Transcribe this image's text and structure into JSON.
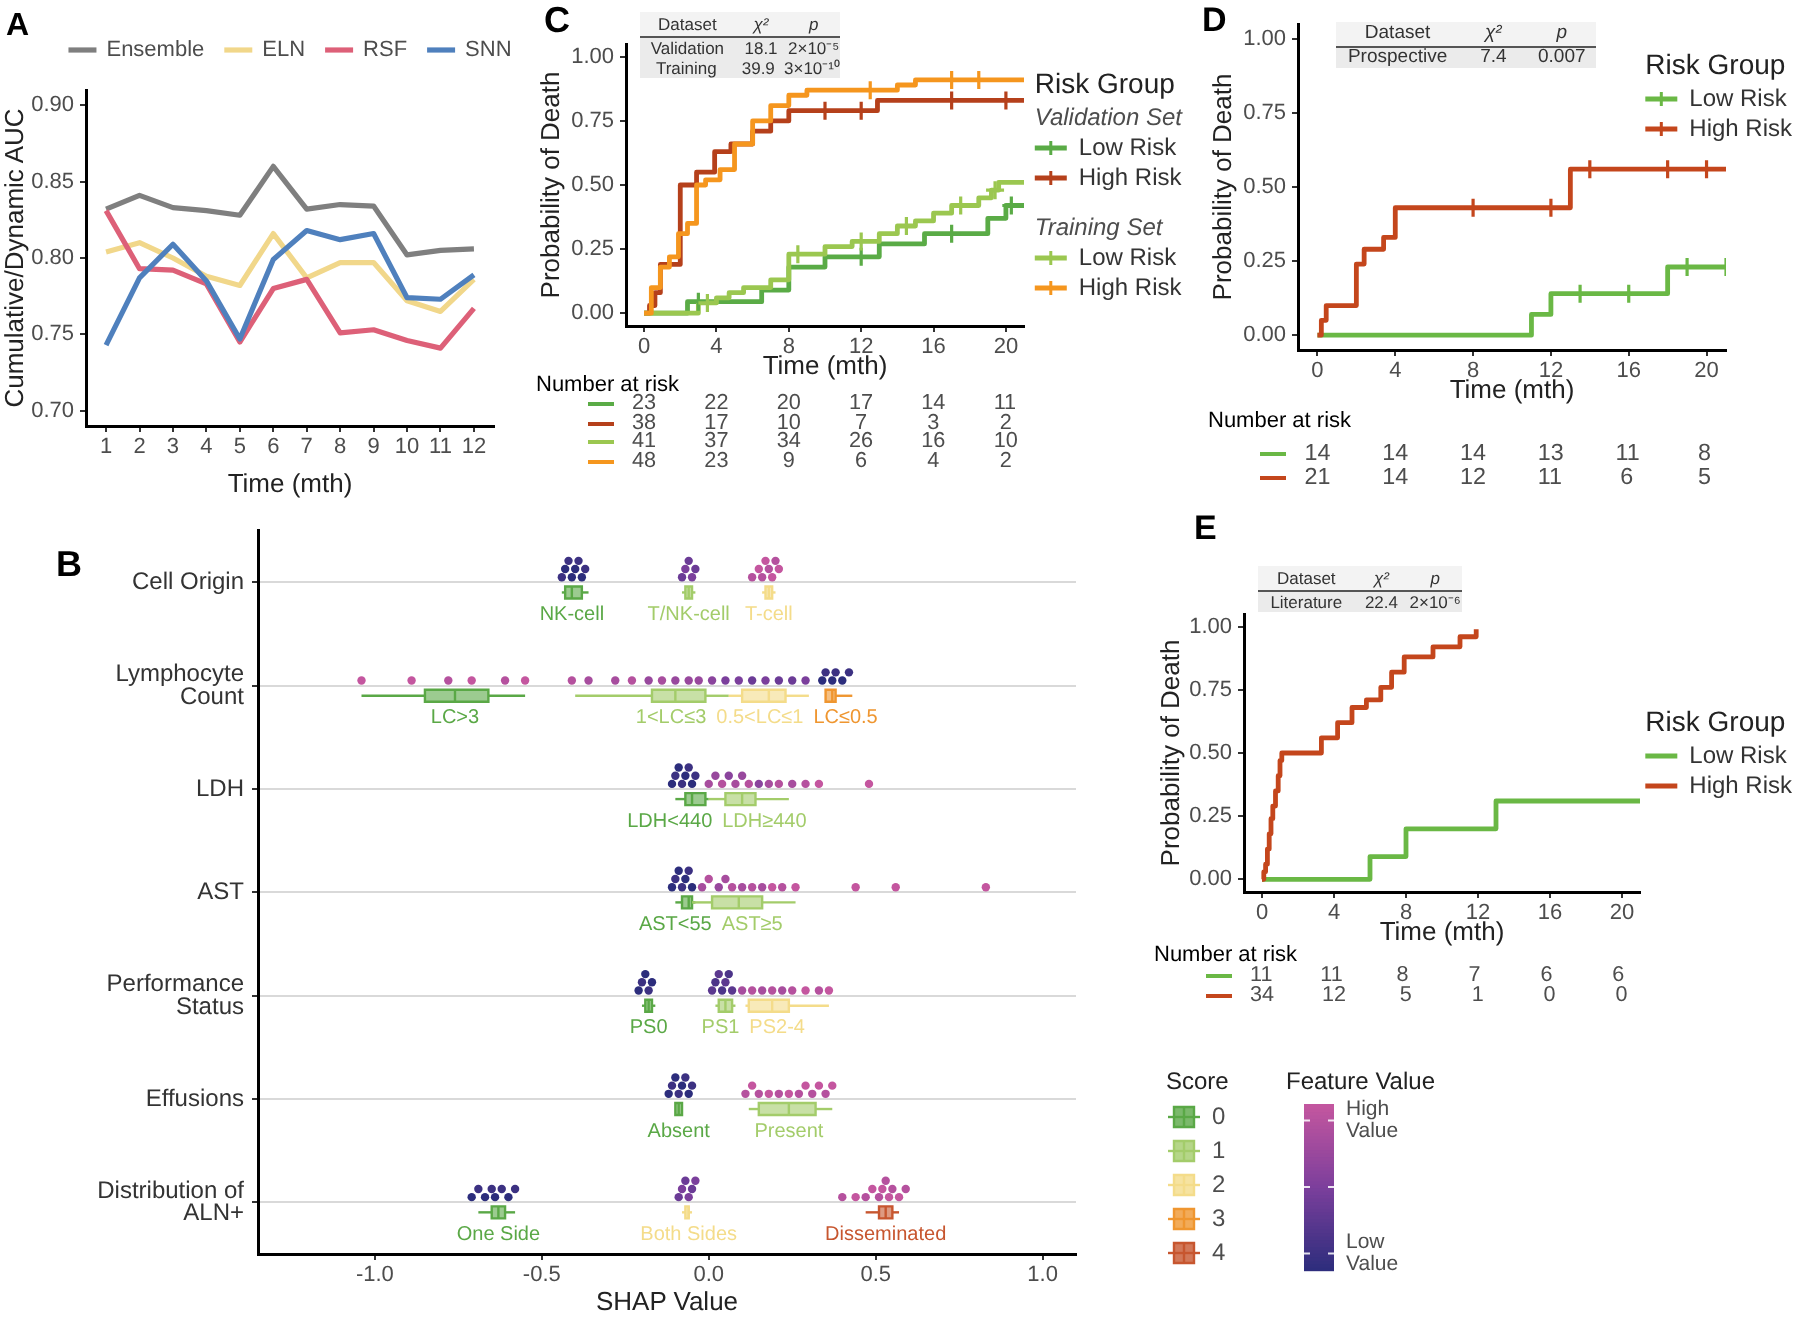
{
  "chart_data": [
    {
      "type": "line",
      "title": "A",
      "xlabel": "Time (mth)",
      "ylabel": "Cumulative/Dynamic AUC",
      "x": [
        1,
        2,
        3,
        4,
        5,
        6,
        7,
        8,
        9,
        10,
        11,
        12
      ],
      "xlim": [
        0.4,
        12.6
      ],
      "xticks": [
        1,
        2,
        3,
        4,
        5,
        6,
        7,
        8,
        9,
        10,
        11,
        12
      ],
      "ylim": [
        0.69,
        0.91
      ],
      "yticks": [
        {
          "value": 0.7,
          "label": "0.70"
        },
        0.75,
        {
          "value": 0.8,
          "label": "0.80"
        },
        0.85,
        {
          "value": 0.9,
          "label": "0.90"
        }
      ],
      "legend": "top",
      "series": [
        {
          "name": "Ensemble",
          "color": "#7f7f7f",
          "values": [
            0.832,
            0.841,
            0.833,
            0.831,
            0.828,
            0.86,
            0.832,
            0.835,
            0.834,
            0.802,
            0.805,
            0.806
          ]
        },
        {
          "name": "ELN",
          "color": "#f1d78a",
          "values": [
            0.804,
            0.81,
            0.8,
            0.788,
            0.782,
            0.816,
            0.787,
            0.797,
            0.797,
            0.772,
            0.765,
            0.786
          ]
        },
        {
          "name": "RSF",
          "color": "#dd6078",
          "values": [
            0.831,
            0.793,
            0.792,
            0.783,
            0.745,
            0.78,
            0.786,
            0.751,
            0.753,
            0.746,
            0.741,
            0.767
          ]
        },
        {
          "name": "SNN",
          "color": "#4f80bd",
          "values": [
            0.743,
            0.787,
            0.809,
            0.785,
            0.747,
            0.799,
            0.818,
            0.812,
            0.816,
            0.774,
            0.773,
            0.789
          ]
        }
      ]
    },
    {
      "type": "step",
      "title": "C",
      "xlabel": "Time (mth)",
      "ylabel": "Probability of Death",
      "xlim": [
        -1,
        21
      ],
      "xticks": [
        0,
        4,
        8,
        12,
        16,
        20
      ],
      "ylim": [
        -0.05,
        1.05
      ],
      "yticks": [
        {
          "value": 0,
          "label": "0.00"
        },
        0.25,
        {
          "value": 0.5,
          "label": "0.50"
        },
        0.75,
        {
          "value": 1,
          "label": "1.00"
        }
      ],
      "legend": "right",
      "legend_title": "Risk Group",
      "annotations": [
        "Validation Set",
        "Training Set"
      ],
      "series": [
        {
          "name": "Low Risk",
          "color": "#5aab46",
          "x": [
            0,
            2.4,
            6.5,
            8,
            10,
            13,
            15.5,
            19,
            20,
            21
          ],
          "values": [
            0,
            0.045,
            0.09,
            0.18,
            0.22,
            0.27,
            0.31,
            0.37,
            0.42,
            0.42
          ]
        },
        {
          "name": "High Risk",
          "color": "#b5401b",
          "x": [
            0,
            0.3,
            0.6,
            0.9,
            2,
            2.9,
            3.9,
            4.8,
            6,
            7,
            8,
            12.9,
            21
          ],
          "values": [
            0,
            0.03,
            0.08,
            0.19,
            0.5,
            0.55,
            0.63,
            0.66,
            0.71,
            0.75,
            0.79,
            0.83,
            0.83
          ]
        },
        {
          "name": "Low Risk",
          "color": "#9bc750",
          "x": [
            0,
            3,
            4,
            4.7,
            5.5,
            7,
            8,
            10,
            11.5,
            13,
            14,
            15,
            16,
            17,
            18.5,
            19.2,
            19.6,
            21
          ],
          "values": [
            0,
            0.04,
            0.06,
            0.08,
            0.1,
            0.13,
            0.23,
            0.26,
            0.28,
            0.31,
            0.34,
            0.36,
            0.39,
            0.42,
            0.45,
            0.48,
            0.51,
            0.51
          ]
        },
        {
          "name": "High Risk",
          "color": "#f5961e",
          "x": [
            0,
            0.4,
            0.9,
            1.4,
            1.9,
            2.4,
            2.9,
            3.4,
            4.2,
            5,
            6,
            7,
            8,
            9,
            14,
            15,
            21
          ],
          "values": [
            0,
            0.1,
            0.18,
            0.22,
            0.31,
            0.35,
            0.5,
            0.52,
            0.56,
            0.66,
            0.75,
            0.81,
            0.85,
            0.87,
            0.89,
            0.91,
            0.91
          ]
        },
        {
          "type": "scatter",
          "marker": "cross",
          "color": "#5aab46",
          "x": [
            3,
            12,
            17,
            20.3
          ],
          "values": [
            0.045,
            0.22,
            0.31,
            0.42
          ]
        },
        {
          "type": "scatter",
          "marker": "cross",
          "color": "#b5401b",
          "x": [
            10,
            12,
            17,
            20
          ],
          "values": [
            0.79,
            0.79,
            0.83,
            0.83
          ]
        },
        {
          "type": "scatter",
          "marker": "cross",
          "color": "#9bc750",
          "x": [
            3.5,
            8.5,
            12,
            14.5,
            17.5,
            19.4
          ],
          "values": [
            0.04,
            0.23,
            0.28,
            0.34,
            0.42,
            0.48
          ]
        },
        {
          "type": "scatter",
          "marker": "cross",
          "color": "#f5961e",
          "x": [
            12.5,
            17,
            18.5
          ],
          "values": [
            0.87,
            0.91,
            0.91
          ]
        }
      ]
    },
    {
      "type": "other",
      "annotations": [
        "Dataset",
        "χ²",
        "p",
        "Validation",
        "18.1",
        "2×10⁻⁵",
        "Training",
        "39.9",
        "3×10⁻¹⁰"
      ]
    },
    {
      "type": "other",
      "title": "Number at risk",
      "annotations": [
        "23 22 20 17 14 11",
        "38 17 10 7 3 2",
        "41 37 34 26 16 10",
        "48 23 9 6 4 2"
      ]
    },
    {
      "type": "step",
      "title": "D",
      "xlabel": "Time (mth)",
      "ylabel": "Probability of Death",
      "xlim": [
        -1,
        21
      ],
      "xticks": [
        0,
        4,
        8,
        12,
        16,
        20
      ],
      "ylim": [
        -0.05,
        1.05
      ],
      "yticks": [
        {
          "value": 0,
          "label": "0.00"
        },
        0.25,
        {
          "value": 0.5,
          "label": "0.50"
        },
        0.75,
        {
          "value": 1,
          "label": "1.00"
        }
      ],
      "legend": "top right",
      "legend_title": "Risk Group",
      "series": [
        {
          "name": "Low Risk",
          "color": "#6ab845",
          "x": [
            0,
            11,
            12,
            18,
            21
          ],
          "values": [
            0,
            0.07,
            0.14,
            0.23,
            0.23
          ]
        },
        {
          "name": "High Risk",
          "color": "#c4461c",
          "x": [
            0,
            0.2,
            0.45,
            2,
            2.4,
            3.4,
            4,
            13,
            21
          ],
          "values": [
            0,
            0.05,
            0.1,
            0.24,
            0.29,
            0.33,
            0.43,
            0.56,
            0.56
          ]
        },
        {
          "type": "scatter",
          "marker": "cross",
          "color": "#6ab845",
          "x": [
            13.5,
            16,
            19,
            21
          ],
          "values": [
            0.14,
            0.14,
            0.23,
            0.23
          ]
        },
        {
          "type": "scatter",
          "marker": "cross",
          "color": "#c4461c",
          "x": [
            8,
            12,
            14,
            18,
            20
          ],
          "values": [
            0.43,
            0.43,
            0.56,
            0.56,
            0.56
          ]
        }
      ]
    },
    {
      "type": "other",
      "annotations": [
        "Dataset",
        "χ²",
        "p",
        "Prospective",
        "7.4",
        "0.007"
      ]
    },
    {
      "type": "other",
      "title": "Number at risk",
      "annotations": [
        "14 14 14 13 11 8",
        "21 14 12 11 6 5"
      ]
    },
    {
      "type": "box",
      "title": "B",
      "orientation": "horizontal",
      "categories": [
        "Cell Origin",
        "Lymphocyte Count",
        "LDH",
        "AST",
        "Performance Status",
        "Effusions",
        "Distribution of ALN+"
      ],
      "xlabel": "SHAP Value",
      "xlim": [
        -1.35,
        1.1
      ],
      "xticks": [
        {
          "value": -1,
          "label": "-1.0"
        },
        -0.5,
        {
          "value": 0,
          "label": "0.0"
        },
        0.5,
        {
          "value": 1,
          "label": "1.0"
        }
      ],
      "grid": "y",
      "legend": "bottom right",
      "legend_title": "Score",
      "clabel": "Feature Value",
      "clim": [
        0,
        1
      ],
      "cticks": [
        {
          "value": 0.1,
          "label": "Low Value"
        },
        {
          "value": 0.5,
          "label": null
        },
        {
          "value": 0.9,
          "label": "High Value"
        }
      ],
      "annotations": [
        {
          "text": "NK-cell",
          "x": -0.41,
          "y": "Cell Origin"
        },
        {
          "text": "T/NK-cell",
          "x": -0.06,
          "y": "Cell Origin"
        },
        {
          "text": "T-cell",
          "x": 0.18,
          "y": "Cell Origin"
        },
        {
          "text": "LC>3",
          "x": -0.76,
          "y": "Lymphocyte Count"
        },
        {
          "text": "1<LC≤3",
          "x": -0.1,
          "y": "Lymphocyte Count"
        },
        {
          "text": "0.5<LC≤1",
          "x": 0.18,
          "y": "Lymphocyte Count"
        },
        {
          "text": "LC≤0.5",
          "x": 0.37,
          "y": "Lymphocyte Count"
        },
        {
          "text": "LDH<440",
          "x": -0.05,
          "y": "LDH"
        },
        {
          "text": "LDH≥440",
          "x": 0.1,
          "y": "LDH"
        },
        {
          "text": "AST<55",
          "x": -0.06,
          "y": "AST"
        },
        {
          "text": "AST≥5",
          "x": 0.09,
          "y": "AST"
        },
        {
          "text": "PS0",
          "x": -0.18,
          "y": "Performance Status"
        },
        {
          "text": "PS1",
          "x": 0.05,
          "y": "Performance Status"
        },
        {
          "text": "PS2-4",
          "x": 0.19,
          "y": "Performance Status"
        },
        {
          "text": "Absent",
          "x": -0.09,
          "y": "Effusions"
        },
        {
          "text": "Present",
          "x": 0.24,
          "y": "Effusions"
        },
        {
          "text": "One Side",
          "x": -0.63,
          "y": "Distribution of ALN+"
        },
        {
          "text": "Both Sides",
          "x": -0.06,
          "y": "Distribution of ALN+"
        },
        {
          "text": "Disseminated",
          "x": 0.53,
          "y": "Distribution of ALN+"
        }
      ],
      "series": [
        {
          "name": "0",
          "color": "#5aa846",
          "boxes": [
            {
              "low": -0.44,
              "q1": -0.43,
              "median": -0.41,
              "q3": -0.38,
              "high": -0.36
            },
            {
              "low": -1.04,
              "q1": -0.85,
              "median": -0.76,
              "q3": -0.66,
              "high": -0.55
            },
            {
              "low": -0.1,
              "q1": -0.07,
              "median": -0.05,
              "q3": -0.01,
              "high": 0
            },
            {
              "low": -0.1,
              "q1": -0.08,
              "median": -0.06,
              "q3": -0.05,
              "high": -0.04
            },
            {
              "low": -0.2,
              "q1": -0.19,
              "median": -0.18,
              "q3": -0.17,
              "high": -0.16
            },
            {
              "low": -0.1,
              "q1": -0.1,
              "median": -0.09,
              "q3": -0.08,
              "high": -0.08
            },
            {
              "low": -0.69,
              "q1": -0.65,
              "median": -0.63,
              "q3": -0.61,
              "high": -0.58
            }
          ]
        },
        {
          "name": "1",
          "color": "#a3cc6a",
          "boxes": [
            {
              "low": -0.08,
              "q1": -0.07,
              "median": -0.06,
              "q3": -0.05,
              "high": -0.04
            },
            {
              "low": -0.4,
              "q1": -0.17,
              "median": -0.1,
              "q3": -0.01,
              "high": 0.06
            },
            {
              "low": 0,
              "q1": 0.05,
              "median": 0.1,
              "q3": 0.14,
              "high": 0.24
            },
            {
              "low": -0.05,
              "q1": 0.01,
              "median": 0.09,
              "q3": 0.16,
              "high": 0.26
            },
            {
              "low": 0.02,
              "q1": 0.03,
              "median": 0.05,
              "q3": 0.07,
              "high": 0.08
            },
            {
              "low": 0.12,
              "q1": 0.15,
              "median": 0.24,
              "q3": 0.32,
              "high": 0.37
            },
            null
          ]
        },
        {
          "name": "2",
          "color": "#f4dc8a",
          "boxes": [
            {
              "low": 0.16,
              "q1": 0.17,
              "median": 0.18,
              "q3": 0.19,
              "high": 0.2
            },
            {
              "low": 0.06,
              "q1": 0.1,
              "median": 0.18,
              "q3": 0.23,
              "high": 0.3
            },
            null,
            null,
            {
              "low": 0.11,
              "q1": 0.12,
              "median": 0.19,
              "q3": 0.24,
              "high": 0.36
            },
            null,
            {
              "low": -0.08,
              "q1": -0.07,
              "median": -0.06,
              "q3": -0.06,
              "high": -0.05
            }
          ]
        },
        {
          "name": "3",
          "color": "#ef9630",
          "boxes": [
            null,
            {
              "low": 0.35,
              "q1": 0.35,
              "median": 0.37,
              "q3": 0.38,
              "high": 0.43
            },
            null,
            null,
            null,
            null,
            null
          ]
        },
        {
          "name": "4",
          "color": "#c7562f",
          "boxes": [
            null,
            null,
            null,
            null,
            null,
            null,
            {
              "low": 0.47,
              "q1": 0.51,
              "median": 0.53,
              "q3": 0.55,
              "high": 0.57
            }
          ]
        },
        {
          "type": "scatter",
          "marker": "circle",
          "x": [
            "Cell Origin",
            "Cell Origin",
            "Cell Origin",
            "Cell Origin",
            "Cell Origin",
            "Cell Origin",
            "Cell Origin",
            "Cell Origin",
            "Cell Origin",
            "Cell Origin",
            "Cell Origin",
            "Cell Origin",
            "Cell Origin",
            "Cell Origin",
            "Cell Origin",
            "Cell Origin",
            "Cell Origin",
            "Cell Origin",
            "Cell Origin",
            "Cell Origin",
            "Cell Origin"
          ],
          "values": [
            -0.44,
            -0.43,
            -0.42,
            -0.41,
            -0.4,
            -0.39,
            -0.38,
            -0.37,
            -0.08,
            -0.07,
            -0.06,
            -0.05,
            -0.04,
            0.13,
            0.15,
            0.16,
            0.17,
            0.18,
            0.19,
            0.2,
            0.21
          ],
          "colors": [
            "#3c3182",
            "#2c2d7c",
            "#3c3182",
            "#2c2d7c",
            "#2c2d7c",
            "#3c3182",
            "#2c2d7c",
            "#3c3182",
            "#6b3b96",
            "#7b3f9c",
            "#6b3b96",
            "#7b3f9c",
            "#6b3b96",
            "#b5519e",
            "#c4569f",
            "#b5519e",
            "#c4569f",
            "#b5519e",
            "#c4569f",
            "#b5519e",
            "#c4569f"
          ]
        },
        {
          "type": "scatter",
          "marker": "circle",
          "x": [
            "Lymphocyte Count",
            "Lymphocyte Count",
            "Lymphocyte Count",
            "Lymphocyte Count",
            "Lymphocyte Count",
            "Lymphocyte Count",
            "Lymphocyte Count",
            "Lymphocyte Count",
            "Lymphocyte Count",
            "Lymphocyte Count",
            "Lymphocyte Count",
            "Lymphocyte Count",
            "Lymphocyte Count",
            "Lymphocyte Count",
            "Lymphocyte Count",
            "Lymphocyte Count",
            "Lymphocyte Count",
            "Lymphocyte Count",
            "Lymphocyte Count",
            "Lymphocyte Count",
            "Lymphocyte Count",
            "Lymphocyte Count",
            "Lymphocyte Count",
            "Lymphocyte Count",
            "Lymphocyte Count",
            "Lymphocyte Count",
            "Lymphocyte Count",
            "Lymphocyte Count",
            "Lymphocyte Count"
          ],
          "values": [
            -1.04,
            -0.89,
            -0.78,
            -0.71,
            -0.61,
            -0.55,
            -0.41,
            -0.36,
            -0.28,
            -0.23,
            -0.18,
            -0.14,
            -0.1,
            -0.06,
            -0.03,
            0.01,
            0.05,
            0.09,
            0.13,
            0.17,
            0.21,
            0.25,
            0.29,
            0.34,
            0.35,
            0.37,
            0.38,
            0.4,
            0.42
          ],
          "colors": [
            "#c4569f",
            "#c4569f",
            "#b5519e",
            "#c4569f",
            "#b5519e",
            "#c4569f",
            "#b5519e",
            "#a74d9e",
            "#a74d9e",
            "#b5519e",
            "#98489d",
            "#a74d9e",
            "#98489d",
            "#98489d",
            "#98489d",
            "#8a449d",
            "#7b3f9c",
            "#7b3f9c",
            "#6b3b96",
            "#7b3f9c",
            "#6b3b96",
            "#6b3b96",
            "#7b3f9c",
            "#2c2d7c",
            "#3c3182",
            "#2c2d7c",
            "#3c3182",
            "#2c2d7c",
            "#3c3182"
          ]
        },
        {
          "type": "scatter",
          "marker": "circle",
          "x": [
            "LDH",
            "LDH",
            "LDH",
            "LDH",
            "LDH",
            "LDH",
            "LDH",
            "LDH",
            "LDH",
            "LDH",
            "LDH",
            "LDH",
            "LDH",
            "LDH",
            "LDH",
            "LDH",
            "LDH",
            "LDH",
            "LDH",
            "LDH",
            "LDH",
            "LDH"
          ],
          "values": [
            -0.11,
            -0.1,
            -0.09,
            -0.08,
            -0.07,
            -0.06,
            -0.05,
            -0.04,
            0,
            0.02,
            0.04,
            0.06,
            0.08,
            0.1,
            0.12,
            0.15,
            0.18,
            0.21,
            0.25,
            0.29,
            0.33,
            0.48
          ],
          "colors": [
            "#2c2d7c",
            "#3c3182",
            "#2c2d7c",
            "#3c3182",
            "#2c2d7c",
            "#3c3182",
            "#2c2d7c",
            "#3c3182",
            "#a74d9e",
            "#98489d",
            "#b5519e",
            "#8a449d",
            "#a74d9e",
            "#98489d",
            "#b5519e",
            "#8a449d",
            "#a74d9e",
            "#b5519e",
            "#a74d9e",
            "#b5519e",
            "#c4569f",
            "#c4569f"
          ]
        },
        {
          "type": "scatter",
          "marker": "circle",
          "x": [
            "AST",
            "AST",
            "AST",
            "AST",
            "AST",
            "AST",
            "AST",
            "AST",
            "AST",
            "AST",
            "AST",
            "AST",
            "AST",
            "AST",
            "AST",
            "AST",
            "AST",
            "AST",
            "AST",
            "AST",
            "AST"
          ],
          "values": [
            -0.11,
            -0.1,
            -0.09,
            -0.08,
            -0.07,
            -0.06,
            -0.05,
            -0.02,
            0,
            0.03,
            0.05,
            0.07,
            0.1,
            0.13,
            0.16,
            0.19,
            0.22,
            0.26,
            0.44,
            0.56,
            0.83
          ],
          "colors": [
            "#2c2d7c",
            "#3c3182",
            "#2c2d7c",
            "#3c3182",
            "#2c2d7c",
            "#3c3182",
            "#2c2d7c",
            "#a74d9e",
            "#b5519e",
            "#98489d",
            "#a74d9e",
            "#b5519e",
            "#a74d9e",
            "#b5519e",
            "#a74d9e",
            "#c4569f",
            "#b5519e",
            "#c4569f",
            "#c4569f",
            "#c4569f",
            "#c4569f"
          ]
        },
        {
          "type": "scatter",
          "marker": "circle",
          "x": [
            "Performance Status",
            "Performance Status",
            "Performance Status",
            "Performance Status",
            "Performance Status",
            "Performance Status",
            "Performance Status",
            "Performance Status",
            "Performance Status",
            "Performance Status",
            "Performance Status",
            "Performance Status",
            "Performance Status",
            "Performance Status",
            "Performance Status",
            "Performance Status",
            "Performance Status",
            "Performance Status",
            "Performance Status",
            "Performance Status",
            "Performance Status"
          ],
          "values": [
            -0.21,
            -0.2,
            -0.19,
            -0.18,
            -0.17,
            0.01,
            0.02,
            0.03,
            0.04,
            0.05,
            0.06,
            0.07,
            0.1,
            0.13,
            0.16,
            0.19,
            0.22,
            0.25,
            0.29,
            0.33,
            0.36
          ],
          "colors": [
            "#2c2d7c",
            "#3c3182",
            "#2c2d7c",
            "#3c3182",
            "#2c2d7c",
            "#5b388f",
            "#4c3489",
            "#5b388f",
            "#4c3489",
            "#5b388f",
            "#4c3489",
            "#5b388f",
            "#a74d9e",
            "#b5519e",
            "#a74d9e",
            "#b5519e",
            "#a74d9e",
            "#b5519e",
            "#c4569f",
            "#b5519e",
            "#c4569f"
          ]
        },
        {
          "type": "scatter",
          "marker": "circle",
          "x": [
            "Effusions",
            "Effusions",
            "Effusions",
            "Effusions",
            "Effusions",
            "Effusions",
            "Effusions",
            "Effusions",
            "Effusions",
            "Effusions",
            "Effusions",
            "Effusions",
            "Effusions",
            "Effusions",
            "Effusions",
            "Effusions",
            "Effusions",
            "Effusions",
            "Effusions",
            "Effusions"
          ],
          "values": [
            -0.12,
            -0.11,
            -0.1,
            -0.09,
            -0.08,
            -0.07,
            -0.06,
            -0.05,
            0.11,
            0.13,
            0.15,
            0.18,
            0.21,
            0.24,
            0.27,
            0.29,
            0.31,
            0.33,
            0.35,
            0.37
          ],
          "colors": [
            "#2c2d7c",
            "#3c3182",
            "#2c2d7c",
            "#3c3182",
            "#2c2d7c",
            "#3c3182",
            "#2c2d7c",
            "#3c3182",
            "#b5519e",
            "#c4569f",
            "#b5519e",
            "#c4569f",
            "#b5519e",
            "#c4569f",
            "#b5519e",
            "#c4569f",
            "#b5519e",
            "#c4569f",
            "#b5519e",
            "#c4569f"
          ]
        },
        {
          "type": "scatter",
          "marker": "circle",
          "x": [
            "Distribution of ALN+",
            "Distribution of ALN+",
            "Distribution of ALN+",
            "Distribution of ALN+",
            "Distribution of ALN+",
            "Distribution of ALN+",
            "Distribution of ALN+",
            "Distribution of ALN+",
            "Distribution of ALN+",
            "Distribution of ALN+",
            "Distribution of ALN+",
            "Distribution of ALN+",
            "Distribution of ALN+",
            "Distribution of ALN+",
            "Distribution of ALN+",
            "Distribution of ALN+",
            "Distribution of ALN+",
            "Distribution of ALN+",
            "Distribution of ALN+",
            "Distribution of ALN+",
            "Distribution of ALN+",
            "Distribution of ALN+",
            "Distribution of ALN+",
            "Distribution of ALN+",
            "Distribution of ALN+"
          ],
          "values": [
            -0.71,
            -0.69,
            -0.67,
            -0.65,
            -0.64,
            -0.62,
            -0.6,
            -0.58,
            -0.09,
            -0.08,
            -0.07,
            -0.06,
            -0.05,
            -0.04,
            0.4,
            0.44,
            0.47,
            0.49,
            0.51,
            0.52,
            0.53,
            0.54,
            0.55,
            0.57,
            0.59
          ],
          "colors": [
            "#2c2d7c",
            "#3c3182",
            "#2c2d7c",
            "#3c3182",
            "#2c2d7c",
            "#3c3182",
            "#2c2d7c",
            "#3c3182",
            "#6b3b96",
            "#7b3f9c",
            "#6b3b96",
            "#7b3f9c",
            "#6b3b96",
            "#7b3f9c",
            "#b5519e",
            "#c4569f",
            "#b5519e",
            "#c4569f",
            "#b5519e",
            "#c4569f",
            "#b5519e",
            "#c4569f",
            "#b5519e",
            "#c4569f",
            "#b5519e"
          ]
        }
      ]
    },
    {
      "type": "other",
      "annotations": [
        "Dataset",
        "χ²",
        "p",
        "Literature",
        "22.4",
        "2×10⁻⁶"
      ]
    },
    {
      "type": "step",
      "title": "E",
      "xlabel": "Time (mth)",
      "ylabel": "Probability of Death",
      "xlim": [
        -1,
        21
      ],
      "xticks": [
        0,
        4,
        8,
        12,
        16,
        20
      ],
      "ylim": [
        -0.05,
        1.05
      ],
      "yticks": [
        {
          "value": 0,
          "label": "0.00"
        },
        0.25,
        {
          "value": 0.5,
          "label": "0.50"
        },
        0.75,
        {
          "value": 1,
          "label": "1.00"
        }
      ],
      "legend": "right",
      "legend_title": "Risk Group",
      "series": [
        {
          "name": "Low Risk",
          "color": "#6ab845",
          "x": [
            0,
            6,
            8,
            13,
            21
          ],
          "values": [
            0,
            0.09,
            0.2,
            0.31,
            0.31
          ]
        },
        {
          "name": "High Risk",
          "color": "#c4461c",
          "x": [
            0,
            0.1,
            0.2,
            0.3,
            0.4,
            0.5,
            0.6,
            0.75,
            0.9,
            1,
            1.1,
            3.3,
            4.2,
            5,
            5.8,
            6.6,
            7.2,
            7.9,
            9.5,
            11,
            11.9
          ],
          "values": [
            0,
            0.03,
            0.06,
            0.12,
            0.18,
            0.24,
            0.29,
            0.35,
            0.41,
            0.47,
            0.5,
            0.56,
            0.62,
            0.68,
            0.71,
            0.76,
            0.82,
            0.88,
            0.92,
            0.96,
            0.99
          ]
        }
      ]
    },
    {
      "type": "other",
      "title": "Number at risk",
      "annotations": [
        "11 11 8 7 6 6",
        "34 12 5 1 0 0"
      ]
    }
  ]
}
